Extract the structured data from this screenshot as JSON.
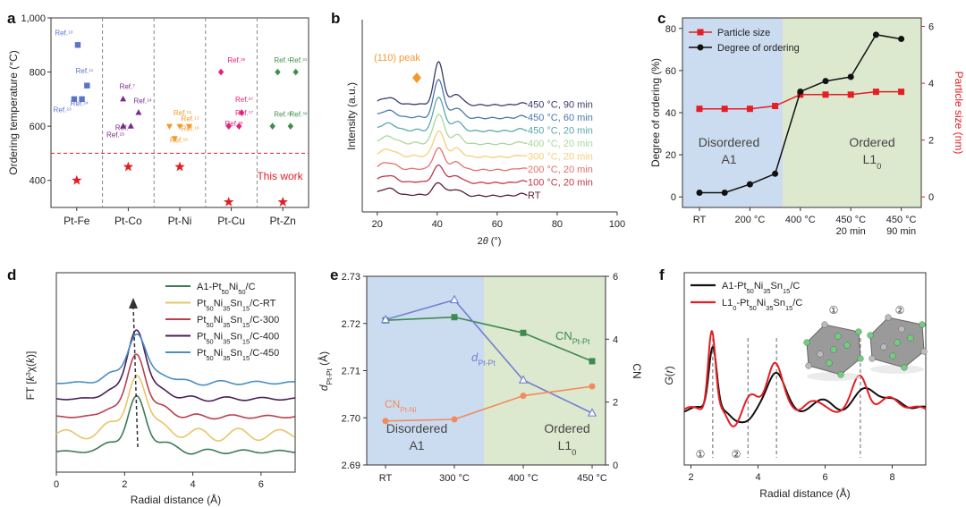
{
  "colors": {
    "fe": "#5b74c8",
    "co": "#7a2a8e",
    "ni": "#f39a2c",
    "cu": "#e8207a",
    "zn": "#3f8f4a",
    "red": "#e31e24",
    "black": "#111111",
    "green": "#3e8a50",
    "blue": "#6f7fd3",
    "orange": "#f28a5c",
    "bgBlue": "#b7cdea",
    "bgGreen": "#d4e3c2"
  },
  "chart_data": [
    {
      "panel": "a",
      "type": "scatter",
      "ylabel": "Ordering temperature (°C)",
      "yticks": [
        "400",
        "600",
        "800",
        "1,000"
      ],
      "ylim": [
        300,
        1000
      ],
      "categories": [
        "Pt-Fe",
        "Pt-Co",
        "Pt-Ni",
        "Pt-Cu",
        "Pt-Zn"
      ],
      "reference_line": {
        "value": 500,
        "style": "dashed",
        "color": "red"
      },
      "this_work_label": "This work",
      "series": [
        {
          "name": "Pt-Fe",
          "marker": "square",
          "color": "fe",
          "points": [
            [
              0.02,
              900
            ],
            [
              0.2,
              750
            ],
            [
              -0.05,
              700
            ],
            [
              0.1,
              700
            ]
          ],
          "labels": [
            {
              "text": "Ref.",
              "sup": "10",
              "x": -0.25,
              "y": 935
            },
            {
              "text": "Ref.",
              "sup": "11",
              "x": 0.15,
              "y": 795
            },
            {
              "text": "Ref.",
              "sup": "23",
              "x": -0.28,
              "y": 652
            },
            {
              "text": "Ref.",
              "sup": "24",
              "x": 0.05,
              "y": 675
            }
          ],
          "this_work": [
            0.0,
            400
          ]
        },
        {
          "name": "Pt-Co",
          "marker": "triangle",
          "color": "co",
          "points": [
            [
              -0.1,
              700
            ],
            [
              0.2,
              650
            ],
            [
              -0.1,
              600
            ],
            [
              0.05,
              600
            ]
          ],
          "labels": [
            {
              "text": "Ref.",
              "sup": "7",
              "x": -0.02,
              "y": 738
            },
            {
              "text": "Ref.",
              "sup": "14",
              "x": 0.28,
              "y": 685
            },
            {
              "text": "Ref.",
              "sup": "25",
              "x": -0.25,
              "y": 560
            },
            {
              "text": "Ref.",
              "sup": "26",
              "x": -0.08,
              "y": 585
            }
          ],
          "this_work": [
            0.0,
            450
          ]
        },
        {
          "name": "Pt-Ni",
          "marker": "triangle-down",
          "color": "ni",
          "points": [
            [
              -0.2,
              600
            ],
            [
              0.0,
              600
            ],
            [
              0.18,
              600
            ],
            [
              -0.1,
              555
            ]
          ],
          "labels": [
            {
              "text": "Ref.",
              "sup": "15",
              "x": 0.05,
              "y": 640
            },
            {
              "text": "Ref.",
              "sup": "13",
              "x": 0.2,
              "y": 618
            },
            {
              "text": "Ref.",
              "sup": "16",
              "x": 0.2,
              "y": 582
            },
            {
              "text": "Ref.",
              "sup": "18",
              "x": -0.02,
              "y": 540
            }
          ],
          "this_work": [
            0.0,
            450
          ]
        },
        {
          "name": "Pt-Cu",
          "marker": "diamond",
          "color": "cu",
          "points": [
            [
              -0.2,
              800
            ],
            [
              -0.05,
              600
            ],
            [
              0.15,
              600
            ],
            [
              0.2,
              650
            ]
          ],
          "labels": [
            {
              "text": "Ref.",
              "sup": "26",
              "x": 0.1,
              "y": 835
            },
            {
              "text": "Ref.",
              "sup": "27",
              "x": 0.25,
              "y": 690
            },
            {
              "text": "Ref.",
              "sup": "28",
              "x": 0.05,
              "y": 600
            },
            {
              "text": "Ref.",
              "sup": "17",
              "x": 0.25,
              "y": 640
            }
          ],
          "this_work": [
            -0.05,
            320
          ]
        },
        {
          "name": "Pt-Zn",
          "marker": "diamond",
          "color": "zn",
          "points": [
            [
              -0.1,
              800
            ],
            [
              0.25,
              800
            ],
            [
              -0.2,
              600
            ],
            [
              0.15,
              600
            ]
          ],
          "labels": [
            {
              "text": "Ref.",
              "sup": "11",
              "x": 0.0,
              "y": 835
            },
            {
              "text": "Ref.",
              "sup": "31",
              "x": 0.3,
              "y": 835
            },
            {
              "text": "Ref.",
              "sup": "29",
              "x": 0.0,
              "y": 635
            },
            {
              "text": "Ref.",
              "sup": "30",
              "x": 0.3,
              "y": 635
            }
          ],
          "this_work": [
            0.0,
            320
          ]
        }
      ]
    },
    {
      "panel": "b",
      "type": "line",
      "xlabel": "2θ (°)",
      "ylabel": "Intensity (a.u.)",
      "xlim": [
        15,
        100
      ],
      "xticks": [
        "20",
        "40",
        "60",
        "80",
        "100"
      ],
      "annotation": "(110) peak",
      "series": [
        {
          "name": "450 °C, 90 min",
          "color": "#3a3a6a",
          "step": 7
        },
        {
          "name": "450 °C, 60 min",
          "color": "#4a78b0",
          "step": 6
        },
        {
          "name": "450 °C, 20 min",
          "color": "#5aa7a8",
          "step": 5
        },
        {
          "name": "400 °C, 20 min",
          "color": "#a7d99a",
          "step": 4
        },
        {
          "name": "300 °C, 20 min",
          "color": "#f5cf7a",
          "step": 3
        },
        {
          "name": "200 °C, 20 min",
          "color": "#e4706a",
          "step": 2
        },
        {
          "name": "100 °C, 20 min",
          "color": "#c0384a",
          "step": 1
        },
        {
          "name": "RT",
          "color": "#5a1f2f",
          "step": 0
        }
      ]
    },
    {
      "panel": "c",
      "type": "line",
      "ylabel_left": "Degree of ordering (%)",
      "ylabel_right": "Particle size (nm)",
      "yticks_left": [
        "0",
        "20",
        "40",
        "60",
        "80"
      ],
      "yticks_right": [
        "0",
        "2",
        "4",
        "6"
      ],
      "ylim_left": [
        -5,
        85
      ],
      "ylim_right": [
        -0.37,
        6.3
      ],
      "xticks": [
        "RT",
        "200 °C",
        "400 °C",
        "450 °C\n20 min",
        "450 °C\n90 min"
      ],
      "region_left": "Disordered\nA1",
      "region_right": "Ordered\nL1",
      "region_right_sub": "0",
      "series": [
        {
          "name": "Particle size",
          "axis": "right",
          "color": "red",
          "marker": "square",
          "values": [
            3.1,
            3.1,
            3.1,
            3.2,
            3.6,
            3.6,
            3.6,
            3.7,
            3.7
          ]
        },
        {
          "name": "Degree of ordering",
          "axis": "left",
          "color": "black",
          "marker": "circle",
          "values": [
            2,
            2,
            6,
            11,
            50,
            55,
            57,
            77,
            75
          ]
        }
      ]
    },
    {
      "panel": "d",
      "type": "line",
      "xlabel": "Radial distance (Å)",
      "ylabel": "FT [k³χ(k)]",
      "xlim": [
        0,
        7
      ],
      "xticks": [
        "0",
        "2",
        "4",
        "6"
      ],
      "series": [
        {
          "name": "A1-Pt",
          "subs": [
            "50",
            "Ni",
            "50",
            "/C"
          ],
          "color": "#3e7a58"
        },
        {
          "name": "Pt",
          "subs": [
            "50",
            "Ni",
            "35",
            "Sn",
            "15",
            "/C-RT"
          ],
          "color": "#e8c567"
        },
        {
          "name": "Pt",
          "subs": [
            "50",
            "Ni",
            "35",
            "Sn",
            "15",
            "/C-300"
          ],
          "color": "#b8404e"
        },
        {
          "name": "Pt",
          "subs": [
            "50",
            "Ni",
            "35",
            "Sn",
            "15",
            "/C-400"
          ],
          "color": "#4a1f58"
        },
        {
          "name": "Pt",
          "subs": [
            "50",
            "Ni",
            "35",
            "Sn",
            "15",
            "/C-450"
          ],
          "color": "#4a8dc3"
        }
      ]
    },
    {
      "panel": "e",
      "type": "line",
      "ylabel_left": "dPt-Pt (Å)",
      "ylabel_right": "CN",
      "yticks_left": [
        "2.69",
        "2.70",
        "2.71",
        "2.72",
        "2.73"
      ],
      "yticks_right": [
        "0",
        "2",
        "4",
        "6"
      ],
      "ylim_left": [
        2.69,
        2.73
      ],
      "ylim_right": [
        0,
        6
      ],
      "xticks": [
        "RT",
        "300 °C",
        "400 °C",
        "450 °C"
      ],
      "region_left": "Disordered\nA1",
      "region_right": "Ordered\nL1",
      "region_right_sub": "0",
      "labels": {
        "cn_ptpt": "CN",
        "cn_ptpt_sub": "Pt-Pt",
        "d": "d",
        "d_sub": "Pt-Pt",
        "cn_ptni": "CN",
        "cn_ptni_sub": "Pt-Ni"
      },
      "series": [
        {
          "name": "CN Pt-Pt",
          "axis": "right",
          "color": "green",
          "marker": "square",
          "values": [
            4.6,
            4.7,
            4.2,
            3.3
          ]
        },
        {
          "name": "d Pt-Pt",
          "axis": "left",
          "color": "blue",
          "marker": "triangle-open",
          "values": [
            2.7208,
            2.725,
            2.708,
            2.701
          ]
        },
        {
          "name": "CN Pt-Ni",
          "axis": "right",
          "color": "orange",
          "marker": "circle",
          "values": [
            1.4,
            1.45,
            2.2,
            2.5
          ]
        }
      ]
    },
    {
      "panel": "f",
      "type": "line",
      "xlabel": "Radial distance (Å)",
      "ylabel": "G(r)",
      "xlim": [
        1.8,
        9
      ],
      "xticks": [
        "2",
        "4",
        "6",
        "8"
      ],
      "markers": [
        "①",
        "②"
      ],
      "dashed_x": [
        2.65,
        3.7,
        4.55,
        7.05
      ],
      "series": [
        {
          "name": "A1-Pt",
          "subs": [
            "50",
            "Ni",
            "35",
            "Sn",
            "15",
            "/C"
          ],
          "color": "black"
        },
        {
          "name": "L1",
          "subs": [
            "0",
            "-Pt",
            "50",
            "Ni",
            "35",
            "Sn",
            "15",
            "/C"
          ],
          "color": "red"
        }
      ]
    }
  ],
  "panel_letters": [
    "a",
    "b",
    "c",
    "d",
    "e",
    "f"
  ]
}
